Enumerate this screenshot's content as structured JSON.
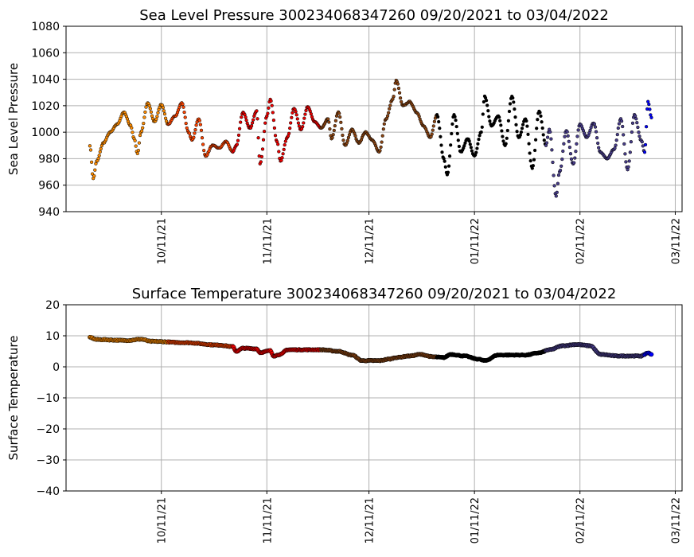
{
  "chart_data": [
    {
      "type": "scatter",
      "title": "Sea Level Pressure 300234068347260  09/20/2021 to 03/04/2022",
      "xlabel": "",
      "ylabel": "Sea Level Pressure",
      "ylim": [
        940,
        1080
      ],
      "yticks": [
        "940",
        "960",
        "980",
        "1000",
        "1020",
        "1040",
        "1060",
        "1080"
      ],
      "xlim": [
        "2021-09-13",
        "2022-03-13"
      ],
      "xticks": [
        {
          "date": "2021-10-11",
          "label": "10/11/21"
        },
        {
          "date": "2021-11-11",
          "label": "11/11/21"
        },
        {
          "date": "2021-12-11",
          "label": "12/11/21"
        },
        {
          "date": "2022-01-11",
          "label": "01/11/22"
        },
        {
          "date": "2022-02-11",
          "label": "02/11/22"
        },
        {
          "date": "2022-03-11",
          "label": "03/11/22"
        }
      ],
      "grid": true,
      "keypoints": [
        [
          "2021-09-20",
          990
        ],
        [
          "2021-09-21",
          965
        ],
        [
          "2021-09-22",
          978
        ],
        [
          "2021-09-24",
          992
        ],
        [
          "2021-09-26",
          1000
        ],
        [
          "2021-09-28",
          1006
        ],
        [
          "2021-09-30",
          1015
        ],
        [
          "2021-10-02",
          1005
        ],
        [
          "2021-10-03",
          995
        ],
        [
          "2021-10-04",
          984
        ],
        [
          "2021-10-05",
          1000
        ],
        [
          "2021-10-07",
          1022
        ],
        [
          "2021-10-09",
          1008
        ],
        [
          "2021-10-11",
          1021
        ],
        [
          "2021-10-13",
          1006
        ],
        [
          "2021-10-15",
          1012
        ],
        [
          "2021-10-17",
          1022
        ],
        [
          "2021-10-19",
          1000
        ],
        [
          "2021-10-20",
          994
        ],
        [
          "2021-10-22",
          1010
        ],
        [
          "2021-10-24",
          982
        ],
        [
          "2021-10-26",
          990
        ],
        [
          "2021-10-28",
          988
        ],
        [
          "2021-10-30",
          993
        ],
        [
          "2021-11-01",
          985
        ],
        [
          "2021-11-02",
          990
        ],
        [
          "2021-11-04",
          1015
        ],
        [
          "2021-11-06",
          1003
        ],
        [
          "2021-11-08",
          1016
        ],
        [
          "2021-11-09",
          976
        ],
        [
          "2021-11-11",
          1012
        ],
        [
          "2021-11-12",
          1025
        ],
        [
          "2021-11-14",
          993
        ],
        [
          "2021-11-15",
          978
        ],
        [
          "2021-11-17",
          996
        ],
        [
          "2021-11-19",
          1018
        ],
        [
          "2021-11-21",
          1002
        ],
        [
          "2021-11-23",
          1019
        ],
        [
          "2021-11-25",
          1008
        ],
        [
          "2021-11-27",
          1003
        ],
        [
          "2021-11-29",
          1010
        ],
        [
          "2021-11-30",
          995
        ],
        [
          "2021-12-02",
          1015
        ],
        [
          "2021-12-04",
          990
        ],
        [
          "2021-12-06",
          1002
        ],
        [
          "2021-12-08",
          992
        ],
        [
          "2021-12-10",
          1000
        ],
        [
          "2021-12-12",
          994
        ],
        [
          "2021-12-14",
          985
        ],
        [
          "2021-12-16",
          1010
        ],
        [
          "2021-12-18",
          1025
        ],
        [
          "2021-12-19",
          1039
        ],
        [
          "2021-12-21",
          1020
        ],
        [
          "2021-12-23",
          1023
        ],
        [
          "2021-12-25",
          1015
        ],
        [
          "2021-12-27",
          1005
        ],
        [
          "2021-12-29",
          996
        ],
        [
          "2021-12-31",
          1013
        ],
        [
          "2022-01-02",
          980
        ],
        [
          "2022-01-03",
          968
        ],
        [
          "2022-01-05",
          1013
        ],
        [
          "2022-01-07",
          985
        ],
        [
          "2022-01-09",
          995
        ],
        [
          "2022-01-11",
          982
        ],
        [
          "2022-01-13",
          1000
        ],
        [
          "2022-01-14",
          1027
        ],
        [
          "2022-01-16",
          1005
        ],
        [
          "2022-01-18",
          1012
        ],
        [
          "2022-01-20",
          990
        ],
        [
          "2022-01-22",
          1027
        ],
        [
          "2022-01-24",
          996
        ],
        [
          "2022-01-26",
          1010
        ],
        [
          "2022-01-28",
          973
        ],
        [
          "2022-01-30",
          1016
        ],
        [
          "2022-02-01",
          990
        ],
        [
          "2022-02-02",
          1002
        ],
        [
          "2022-02-04",
          952
        ],
        [
          "2022-02-05",
          970
        ],
        [
          "2022-02-07",
          1001
        ],
        [
          "2022-02-09",
          976
        ],
        [
          "2022-02-11",
          1006
        ],
        [
          "2022-02-13",
          996
        ],
        [
          "2022-02-15",
          1007
        ],
        [
          "2022-02-17",
          985
        ],
        [
          "2022-02-19",
          980
        ],
        [
          "2022-02-21",
          987
        ],
        [
          "2022-02-23",
          1010
        ],
        [
          "2022-02-25",
          972
        ],
        [
          "2022-02-27",
          1013
        ],
        [
          "2022-03-01",
          994
        ],
        [
          "2022-03-02",
          985
        ],
        [
          "2022-03-03",
          1023
        ],
        [
          "2022-03-04",
          1011
        ]
      ],
      "color_by_month": [
        {
          "from": "2021-09-20",
          "color": "#ff8c00"
        },
        {
          "from": "2021-10-13",
          "color": "#ff4500"
        },
        {
          "from": "2021-11-01",
          "color": "#ee0000"
        },
        {
          "from": "2021-11-27",
          "color": "#8b4513"
        },
        {
          "from": "2021-12-31",
          "color": "#000000"
        },
        {
          "from": "2022-02-01",
          "color": "#483d8b"
        },
        {
          "from": "2022-03-02",
          "color": "#0000ff"
        }
      ]
    },
    {
      "type": "scatter",
      "title": "Surface Temperature 300234068347260  09/20/2021 to 03/04/2022",
      "xlabel": "",
      "ylabel": "Surface Temperature",
      "ylim": [
        -40,
        20
      ],
      "yticks": [
        "−40",
        "−30",
        "−20",
        "−10",
        "0",
        "10",
        "20"
      ],
      "xlim": [
        "2021-09-13",
        "2022-03-13"
      ],
      "xticks": [
        {
          "date": "2021-10-11",
          "label": "10/11/21"
        },
        {
          "date": "2021-11-11",
          "label": "11/11/21"
        },
        {
          "date": "2021-12-11",
          "label": "12/11/21"
        },
        {
          "date": "2022-01-11",
          "label": "01/11/22"
        },
        {
          "date": "2022-02-11",
          "label": "02/11/22"
        },
        {
          "date": "2022-03-11",
          "label": "03/11/22"
        }
      ],
      "grid": true,
      "keypoints": [
        [
          "2021-09-20",
          9.5
        ],
        [
          "2021-09-22",
          8.8
        ],
        [
          "2021-10-01",
          8.5
        ],
        [
          "2021-10-05",
          8.9
        ],
        [
          "2021-10-08",
          8.2
        ],
        [
          "2021-10-18",
          7.8
        ],
        [
          "2021-10-28",
          7.0
        ],
        [
          "2021-11-01",
          6.5
        ],
        [
          "2021-11-02",
          5.0
        ],
        [
          "2021-11-04",
          6.0
        ],
        [
          "2021-11-08",
          5.8
        ],
        [
          "2021-11-09",
          4.6
        ],
        [
          "2021-11-12",
          5.2
        ],
        [
          "2021-11-13",
          3.5
        ],
        [
          "2021-11-15",
          4.0
        ],
        [
          "2021-11-17",
          5.5
        ],
        [
          "2021-11-27",
          5.5
        ],
        [
          "2021-12-02",
          5.0
        ],
        [
          "2021-12-06",
          3.8
        ],
        [
          "2021-12-09",
          2.0
        ],
        [
          "2021-12-14",
          2.0
        ],
        [
          "2021-12-17",
          2.5
        ],
        [
          "2021-12-19",
          3.0
        ],
        [
          "2021-12-23",
          3.5
        ],
        [
          "2021-12-26",
          4.0
        ],
        [
          "2021-12-30",
          3.2
        ],
        [
          "2022-01-02",
          3.0
        ],
        [
          "2022-01-04",
          4.0
        ],
        [
          "2022-01-08",
          3.5
        ],
        [
          "2022-01-12",
          2.5
        ],
        [
          "2022-01-14",
          2.0
        ],
        [
          "2022-01-18",
          3.8
        ],
        [
          "2022-01-26",
          3.8
        ],
        [
          "2022-01-30",
          4.5
        ],
        [
          "2022-02-02",
          5.5
        ],
        [
          "2022-02-06",
          6.8
        ],
        [
          "2022-02-10",
          7.2
        ],
        [
          "2022-02-14",
          6.8
        ],
        [
          "2022-02-17",
          4.0
        ],
        [
          "2022-02-22",
          3.5
        ],
        [
          "2022-03-01",
          3.5
        ],
        [
          "2022-03-03",
          4.5
        ],
        [
          "2022-03-04",
          4.0
        ]
      ],
      "color_by_month": [
        {
          "from": "2021-09-20",
          "color": "#ff8c00"
        },
        {
          "from": "2021-10-13",
          "color": "#ff4500"
        },
        {
          "from": "2021-11-01",
          "color": "#ee0000"
        },
        {
          "from": "2021-11-27",
          "color": "#8b4513"
        },
        {
          "from": "2021-12-31",
          "color": "#000000"
        },
        {
          "from": "2022-02-01",
          "color": "#483d8b"
        },
        {
          "from": "2022-03-02",
          "color": "#0000ff"
        }
      ]
    }
  ]
}
